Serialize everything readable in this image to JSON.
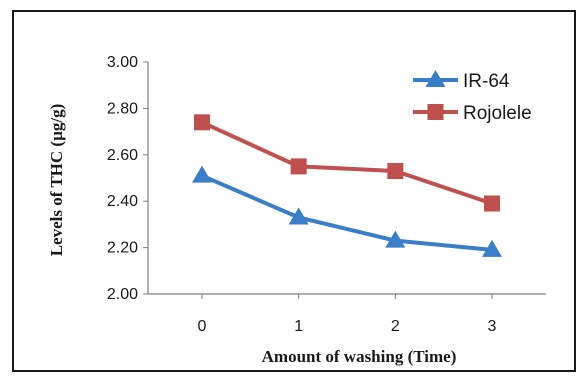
{
  "chart_data": {
    "type": "line",
    "x": [
      0,
      1,
      2,
      3
    ],
    "xlabel": "Amount of washing (Time)",
    "ylabel": "Levels of  THC (µg/g)",
    "ylim": [
      2.0,
      3.0
    ],
    "yticks": [
      "2.00",
      "2.20",
      "2.40",
      "2.60",
      "2.80",
      "3.00"
    ],
    "xticks": [
      "0",
      "1",
      "2",
      "3"
    ],
    "grid": false,
    "legend_position": "top-right",
    "series": [
      {
        "name": "IR-64",
        "values": [
          2.51,
          2.33,
          2.23,
          2.19
        ],
        "color": "#3a7dc9",
        "marker": "triangle"
      },
      {
        "name": "Rojolele",
        "values": [
          2.74,
          2.55,
          2.53,
          2.39
        ],
        "color": "#c0504d",
        "marker": "square"
      }
    ]
  }
}
